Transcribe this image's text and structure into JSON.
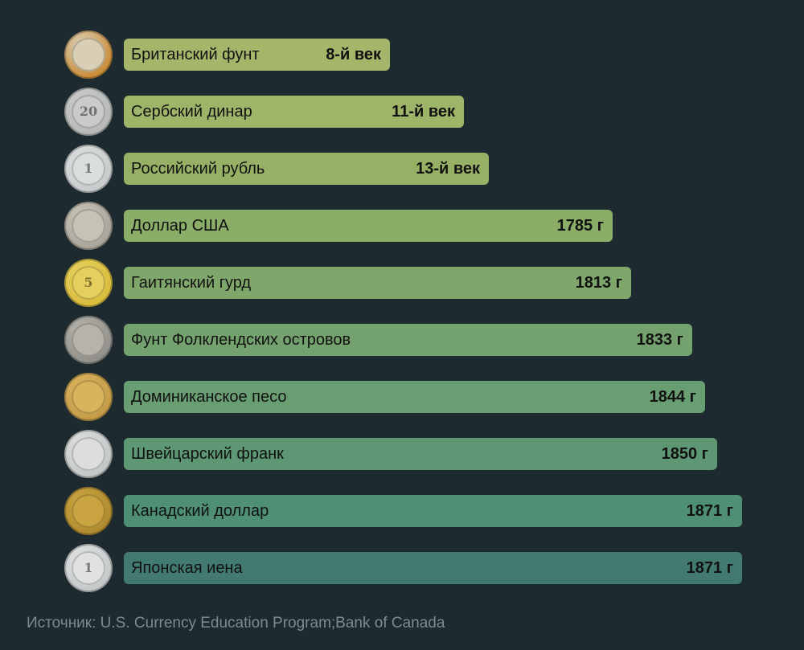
{
  "chart_data": {
    "type": "bar",
    "orientation": "horizontal",
    "categories": [
      "Британский фунт",
      "Сербский динар",
      "Российский рубль",
      "Доллар США",
      "Гаитянский гурд",
      "Фунт Фолклендских островов",
      "Доминиканское песо",
      "Швейцарский франк",
      "Канадский доллар",
      "Японская иена"
    ],
    "value_labels": [
      "8-й век",
      "11-й век",
      "13-й век",
      "1785 г",
      "1813 г",
      "1833 г",
      "1844 г",
      "1850 г",
      "1871 г",
      "1871 г"
    ],
    "values": [
      0.43,
      0.55,
      0.59,
      0.79,
      0.82,
      0.92,
      0.94,
      0.96,
      1.0,
      1.0
    ],
    "bar_colors": [
      "#a5b56a",
      "#9eb468",
      "#96b166",
      "#8aad68",
      "#80a76b",
      "#74a26e",
      "#699d72",
      "#5d9774",
      "#4f8f76",
      "#427a72"
    ],
    "coin_colors": [
      {
        "outer": "#c98a35",
        "inner": "#d9cfb4"
      },
      {
        "outer": "#b6b8b8",
        "inner": "#c9cbcb"
      },
      {
        "outer": "#c8cbcc",
        "inner": "#dadddd"
      },
      {
        "outer": "#a9a49a",
        "inner": "#c7c2b6"
      },
      {
        "outer": "#d9bd3c",
        "inner": "#e6cf5c"
      },
      {
        "outer": "#8f8e88",
        "inner": "#b5b3aa"
      },
      {
        "outer": "#c49a48",
        "inner": "#d8b45c"
      },
      {
        "outer": "#c3c6c6",
        "inner": "#dcdede"
      },
      {
        "outer": "#b08a2f",
        "inner": "#c9a440"
      },
      {
        "outer": "#c4c7c8",
        "inner": "#dfe1e2"
      }
    ],
    "coin_marks": [
      "",
      "20",
      "1",
      "",
      "5",
      "",
      "",
      "",
      "",
      "1"
    ]
  },
  "source": "Источник: U.S. Currency Education Program;Bank of Canada"
}
